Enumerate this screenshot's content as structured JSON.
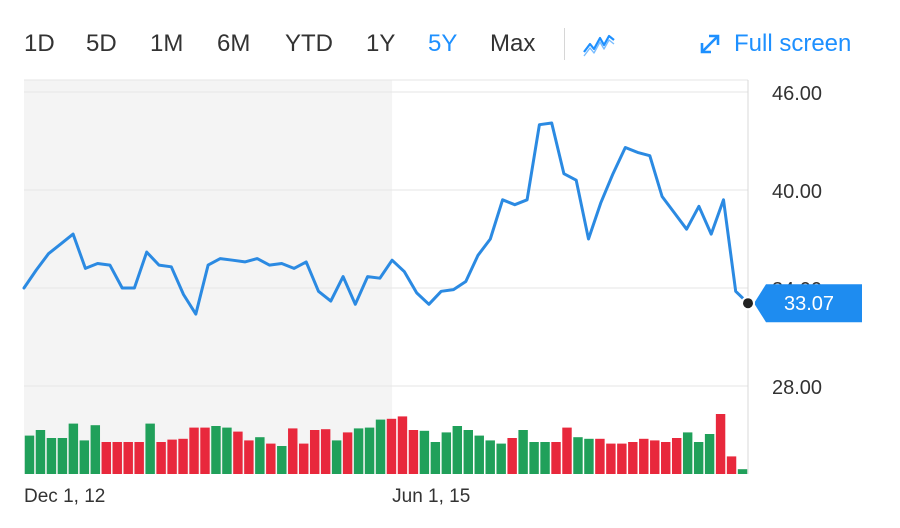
{
  "toolbar": {
    "ranges": [
      "1D",
      "5D",
      "1M",
      "6M",
      "YTD",
      "1Y",
      "5Y",
      "Max"
    ],
    "active_range": "5Y",
    "chart_type_icon": "line-chart-icon",
    "fullscreen_label": "Full screen",
    "fullscreen_icon": "expand-arrows-icon"
  },
  "colors": {
    "accent": "#1e90ff",
    "line": "#2b8ae2",
    "volume_up": "#20a05a",
    "volume_down": "#e8283c",
    "shaded_region": "#f4f4f4",
    "grid": "#e6e6e6"
  },
  "chart_data": {
    "type": "line",
    "ylim": [
      28,
      46
    ],
    "yticks": [
      28,
      34,
      40,
      46
    ],
    "ytick_labels": [
      "28.00",
      "34.00",
      "40.00",
      "46.00"
    ],
    "x_tick_labels": [
      "Dec 1, 12",
      "Jun 1, 15"
    ],
    "current_value_label": "33.07",
    "current_value": 33.07,
    "shaded_until_index": 30,
    "series": [
      {
        "values": [
          34.0,
          35.1,
          36.1,
          36.7,
          37.3,
          35.2,
          35.5,
          35.4,
          34.0,
          34.0,
          36.2,
          35.4,
          35.3,
          33.6,
          32.4,
          35.4,
          35.8,
          35.7,
          35.6,
          35.8,
          35.4,
          35.5,
          35.2,
          35.6,
          33.8,
          33.2,
          34.7,
          33.0,
          34.7,
          34.6,
          35.7,
          35.0,
          33.7,
          33.0,
          33.8,
          33.9,
          34.4,
          36.0,
          37.0,
          39.4,
          39.1,
          39.4,
          44.0,
          44.1,
          41.0,
          40.6,
          37.0,
          39.2,
          41.0,
          42.6,
          42.3,
          42.1,
          39.6,
          38.6,
          37.6,
          39.0,
          37.3,
          39.4,
          33.8,
          33.07
        ]
      }
    ],
    "volume": [
      {
        "v": 0.48,
        "up": true
      },
      {
        "v": 0.55,
        "up": true
      },
      {
        "v": 0.45,
        "up": true
      },
      {
        "v": 0.45,
        "up": true
      },
      {
        "v": 0.63,
        "up": true
      },
      {
        "v": 0.42,
        "up": true
      },
      {
        "v": 0.61,
        "up": true
      },
      {
        "v": 0.4,
        "up": false
      },
      {
        "v": 0.4,
        "up": false
      },
      {
        "v": 0.4,
        "up": false
      },
      {
        "v": 0.4,
        "up": false
      },
      {
        "v": 0.63,
        "up": true
      },
      {
        "v": 0.4,
        "up": false
      },
      {
        "v": 0.43,
        "up": false
      },
      {
        "v": 0.44,
        "up": false
      },
      {
        "v": 0.58,
        "up": false
      },
      {
        "v": 0.58,
        "up": false
      },
      {
        "v": 0.6,
        "up": true
      },
      {
        "v": 0.58,
        "up": true
      },
      {
        "v": 0.53,
        "up": false
      },
      {
        "v": 0.42,
        "up": false
      },
      {
        "v": 0.46,
        "up": true
      },
      {
        "v": 0.38,
        "up": false
      },
      {
        "v": 0.35,
        "up": true
      },
      {
        "v": 0.57,
        "up": false
      },
      {
        "v": 0.38,
        "up": false
      },
      {
        "v": 0.55,
        "up": false
      },
      {
        "v": 0.56,
        "up": false
      },
      {
        "v": 0.42,
        "up": true
      },
      {
        "v": 0.52,
        "up": false
      },
      {
        "v": 0.57,
        "up": true
      },
      {
        "v": 0.58,
        "up": true
      },
      {
        "v": 0.68,
        "up": true
      },
      {
        "v": 0.69,
        "up": false
      },
      {
        "v": 0.72,
        "up": false
      },
      {
        "v": 0.55,
        "up": false
      },
      {
        "v": 0.54,
        "up": true
      },
      {
        "v": 0.4,
        "up": true
      },
      {
        "v": 0.52,
        "up": true
      },
      {
        "v": 0.6,
        "up": true
      },
      {
        "v": 0.55,
        "up": true
      },
      {
        "v": 0.48,
        "up": true
      },
      {
        "v": 0.42,
        "up": true
      },
      {
        "v": 0.38,
        "up": true
      },
      {
        "v": 0.45,
        "up": false
      },
      {
        "v": 0.55,
        "up": true
      },
      {
        "v": 0.4,
        "up": true
      },
      {
        "v": 0.4,
        "up": true
      },
      {
        "v": 0.4,
        "up": false
      },
      {
        "v": 0.58,
        "up": false
      },
      {
        "v": 0.46,
        "up": true
      },
      {
        "v": 0.44,
        "up": true
      },
      {
        "v": 0.44,
        "up": false
      },
      {
        "v": 0.38,
        "up": false
      },
      {
        "v": 0.38,
        "up": false
      },
      {
        "v": 0.4,
        "up": false
      },
      {
        "v": 0.44,
        "up": false
      },
      {
        "v": 0.42,
        "up": false
      },
      {
        "v": 0.4,
        "up": false
      },
      {
        "v": 0.45,
        "up": false
      },
      {
        "v": 0.52,
        "up": true
      },
      {
        "v": 0.4,
        "up": true
      },
      {
        "v": 0.5,
        "up": true
      },
      {
        "v": 0.75,
        "up": false
      },
      {
        "v": 0.22,
        "up": false
      },
      {
        "v": 0.06,
        "up": true
      }
    ]
  }
}
